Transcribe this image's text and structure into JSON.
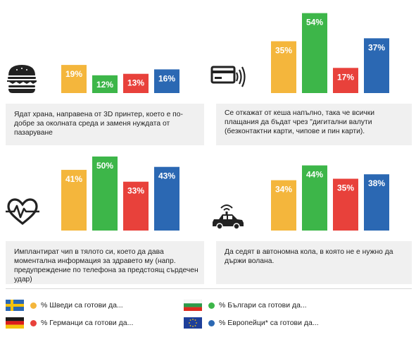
{
  "chart_data": [
    {
      "type": "bar",
      "icon": "burger-icon",
      "caption": "Ядат храна, направена от 3D принтер, което е по-добре за околната среда и заменя нуждата от пазаруване",
      "categories": [
        "Швеция",
        "България",
        "Германия",
        "Европа"
      ],
      "values": [
        19,
        12,
        13,
        16
      ],
      "labels": [
        "19%",
        "12%",
        "13%",
        "16%"
      ]
    },
    {
      "type": "bar",
      "icon": "contactless-card-icon",
      "caption": "Се откажат от кеша напълно, така че всички плащания да бъдат чрез \"дигитални валути (безконтактни карти, чипове и пин карти).",
      "categories": [
        "Швеция",
        "България",
        "Германия",
        "Европа"
      ],
      "values": [
        35,
        54,
        17,
        37
      ],
      "labels": [
        "35%",
        "54%",
        "17%",
        "37%"
      ]
    },
    {
      "type": "bar",
      "icon": "heart-pulse-icon",
      "caption": "Имплантират чип в тялото си, което да дава моментална информация за здравето му (напр. предупреждение по телефона за предстоящ сърдечен удар)",
      "categories": [
        "Швеция",
        "България",
        "Германия",
        "Европа"
      ],
      "values": [
        41,
        50,
        33,
        43
      ],
      "labels": [
        "41%",
        "50%",
        "33%",
        "43%"
      ]
    },
    {
      "type": "bar",
      "icon": "autonomous-car-icon",
      "caption": "Да седят в автономна кола, в която не е нужно да държи волана.",
      "categories": [
        "Швеция",
        "България",
        "Германия",
        "Европа"
      ],
      "values": [
        34,
        44,
        35,
        38
      ],
      "labels": [
        "34%",
        "44%",
        "35%",
        "38%"
      ]
    }
  ],
  "colors": {
    "sweden": "#f4b63c",
    "bulgaria": "#3db649",
    "germany": "#e8413b",
    "europe": "#2b68b3",
    "caption_bg": "#f0f0f0"
  },
  "legend": [
    {
      "flag": "sweden-flag-icon",
      "color": "#f4b63c",
      "text": "% Шведи са готови да..."
    },
    {
      "flag": "bulgaria-flag-icon",
      "color": "#3db649",
      "text": "% Българи са готови да..."
    },
    {
      "flag": "germany-flag-icon",
      "color": "#e8413b",
      "text": "% Германци са готови да..."
    },
    {
      "flag": "eu-flag-icon",
      "color": "#2b68b3",
      "text": "% Европейци* са готови да..."
    }
  ]
}
